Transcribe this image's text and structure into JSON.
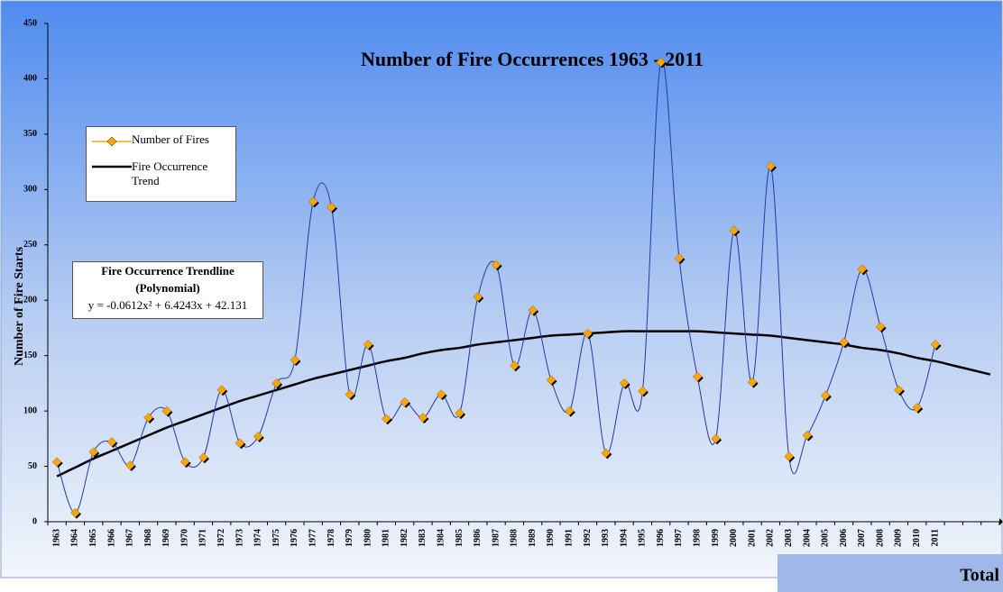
{
  "chart_data": {
    "type": "line",
    "title": "Number of Fire Occurrences 1963 - 2011",
    "y_label": "Number of Fire Starts",
    "categories": [
      "1963",
      "1964",
      "1965",
      "1966",
      "1967",
      "1968",
      "1969",
      "1970",
      "1971",
      "1972",
      "1973",
      "1974",
      "1975",
      "1976",
      "1977",
      "1978",
      "1979",
      "1980",
      "1981",
      "1982",
      "1983",
      "1984",
      "1985",
      "1986",
      "1987",
      "1988",
      "1989",
      "1990",
      "1991",
      "1992",
      "1993",
      "1994",
      "1995",
      "1996",
      "1997",
      "1998",
      "1999",
      "2000",
      "2001",
      "2002",
      "2003",
      "2004",
      "2005",
      "2006",
      "2007",
      "2008",
      "2009",
      "2010",
      "2011",
      null,
      null,
      null
    ],
    "series": [
      {
        "name": "Number of Fires",
        "color": "#ffa500",
        "line_color": "#2a36a8",
        "values": [
          54,
          8,
          63,
          72,
          51,
          94,
          100,
          54,
          58,
          119,
          71,
          77,
          125,
          146,
          289,
          284,
          115,
          160,
          93,
          108,
          94,
          115,
          98,
          203,
          232,
          141,
          191,
          128,
          100,
          170,
          62,
          125,
          118,
          415,
          238,
          131,
          75,
          263,
          126,
          321,
          59,
          78,
          114,
          162,
          228,
          176,
          119,
          103,
          160,
          null,
          null,
          null
        ]
      },
      {
        "name": "Fire Occurrence Trend",
        "color": "#000000",
        "values": [
          41,
          49,
          57,
          64,
          71,
          78,
          85,
          91,
          97,
          103,
          109,
          114,
          119,
          124,
          129,
          133,
          137,
          141,
          145,
          148,
          152,
          155,
          157,
          160,
          162,
          164,
          166,
          168,
          169,
          170,
          171,
          172,
          172,
          172,
          172,
          172,
          171,
          170,
          169,
          168,
          166,
          164,
          162,
          160,
          157,
          155,
          152,
          148,
          145,
          141,
          137,
          133
        ]
      }
    ],
    "ylim": [
      0,
      450
    ],
    "yticks": [
      0,
      50,
      100,
      150,
      200,
      250,
      300,
      350,
      400,
      450
    ],
    "annotation": [
      "Fire Occurrence Trendline",
      "(Polynomial)",
      "y = -0.0612x² + 6.4243x + 42.131"
    ],
    "table_label": "Total"
  }
}
